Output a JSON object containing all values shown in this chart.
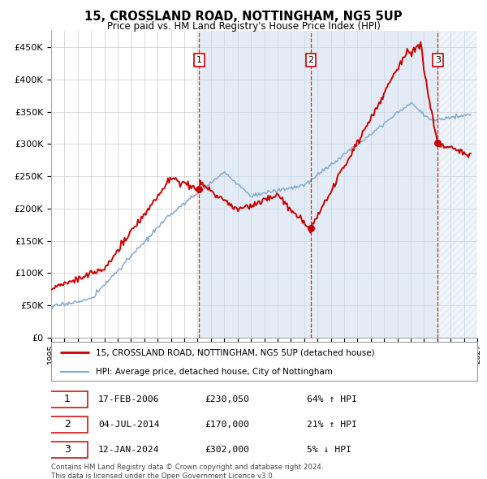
{
  "title": "15, CROSSLAND ROAD, NOTTINGHAM, NG5 5UP",
  "subtitle": "Price paid vs. HM Land Registry's House Price Index (HPI)",
  "ylabel_ticks": [
    "£0",
    "£50K",
    "£100K",
    "£150K",
    "£200K",
    "£250K",
    "£300K",
    "£350K",
    "£400K",
    "£450K"
  ],
  "ylim": [
    0,
    475000
  ],
  "xlim_start": 1995.0,
  "xlim_end": 2027.0,
  "sale_dates": [
    2006.12,
    2014.5,
    2024.03
  ],
  "sale_prices": [
    230050,
    170000,
    302000
  ],
  "sale_labels": [
    "1",
    "2",
    "3"
  ],
  "legend_house": "15, CROSSLAND ROAD, NOTTINGHAM, NG5 5UP (detached house)",
  "legend_hpi": "HPI: Average price, detached house, City of Nottingham",
  "table_rows": [
    [
      "1",
      "17-FEB-2006",
      "£230,050",
      "64% ↑ HPI"
    ],
    [
      "2",
      "04-JUL-2014",
      "£170,000",
      "21% ↑ HPI"
    ],
    [
      "3",
      "12-JAN-2024",
      "£302,000",
      "5% ↓ HPI"
    ]
  ],
  "footnote": "Contains HM Land Registry data © Crown copyright and database right 2024.\nThis data is licensed under the Open Government Licence v3.0.",
  "house_color": "#cc0000",
  "hpi_color": "#88aacc",
  "grid_color": "#cccccc",
  "shade_color": "#ccddef",
  "bg_color": "#ffffff"
}
